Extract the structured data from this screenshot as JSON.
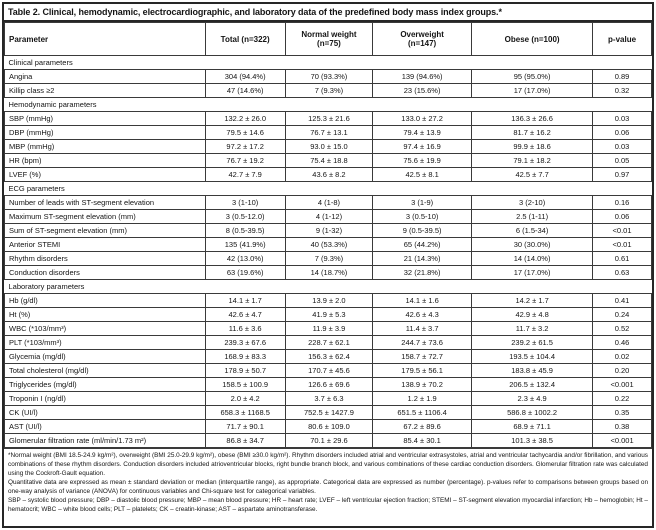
{
  "table": {
    "title": "Table 2. Clinical, hemodynamic, electrocardiographic, and laboratory data of the predefined body mass index groups.*",
    "columns": [
      "Parameter",
      "Total (n=322)",
      "Normal weight (n=75)",
      "Overweight (n=147)",
      "Obese (n=100)",
      "p-value"
    ],
    "sections": [
      {
        "label": "Clinical parameters",
        "rows": [
          {
            "parameter": "Angina",
            "values": [
              "304 (94.4%)",
              "70 (93.3%)",
              "139 (94.6%)",
              "95 (95.0%)"
            ],
            "p": "0.89"
          },
          {
            "parameter": "Killip class ≥2",
            "values": [
              "47 (14.6%)",
              "7 (9.3%)",
              "23 (15.6%)",
              "17 (17.0%)"
            ],
            "p": "0.32"
          }
        ]
      },
      {
        "label": "Hemodynamic parameters",
        "rows": [
          {
            "parameter": "SBP (mmHg)",
            "values": [
              "132.2 ± 26.0",
              "125.3 ± 21.6",
              "133.0 ± 27.2",
              "136.3 ± 26.6"
            ],
            "p": "0.03"
          },
          {
            "parameter": "DBP (mmHg)",
            "values": [
              "79.5 ± 14.6",
              "76.7 ± 13.1",
              "79.4 ± 13.9",
              "81.7 ± 16.2"
            ],
            "p": "0.06"
          },
          {
            "parameter": "MBP (mmHg)",
            "values": [
              "97.2 ± 17.2",
              "93.0 ± 15.0",
              "97.4 ± 16.9",
              "99.9 ± 18.6"
            ],
            "p": "0.03"
          },
          {
            "parameter": "HR (bpm)",
            "values": [
              "76.7 ± 19.2",
              "75.4 ± 18.8",
              "75.6 ± 19.9",
              "79.1 ± 18.2"
            ],
            "p": "0.05"
          },
          {
            "parameter": "LVEF (%)",
            "values": [
              "42.7 ± 7.9",
              "43.6 ± 8.2",
              "42.5 ± 8.1",
              "42.5 ± 7.7"
            ],
            "p": "0.97"
          }
        ]
      },
      {
        "label": "ECG parameters",
        "rows": [
          {
            "parameter": "Number of leads with ST-segment elevation",
            "values": [
              "3 (1-10)",
              "4 (1-8)",
              "3 (1-9)",
              "3 (2-10)"
            ],
            "p": "0.16"
          },
          {
            "parameter": "Maximum ST-segment elevation (mm)",
            "values": [
              "3 (0.5-12.0)",
              "4 (1-12)",
              "3 (0.5-10)",
              "2.5 (1-11)"
            ],
            "p": "0.06"
          },
          {
            "parameter": "Sum of ST-segment elevation (mm)",
            "values": [
              "8 (0.5-39.5)",
              "9 (1-32)",
              "9 (0.5-39.5)",
              "6 (1.5-34)"
            ],
            "p": "<0.01"
          },
          {
            "parameter": "Anterior STEMI",
            "values": [
              "135 (41.9%)",
              "40 (53.3%)",
              "65 (44.2%)",
              "30 (30.0%)"
            ],
            "p": "<0.01"
          },
          {
            "parameter": "Rhythm disorders",
            "values": [
              "42 (13.0%)",
              "7 (9.3%)",
              "21 (14.3%)",
              "14 (14.0%)"
            ],
            "p": "0.61"
          },
          {
            "parameter": "Conduction disorders",
            "values": [
              "63 (19.6%)",
              "14 (18.7%)",
              "32 (21.8%)",
              "17 (17.0%)"
            ],
            "p": "0.63"
          }
        ]
      },
      {
        "label": "Laboratory parameters",
        "rows": [
          {
            "parameter": "Hb (g/dl)",
            "values": [
              "14.1 ± 1.7",
              "13.9 ± 2.0",
              "14.1 ± 1.6",
              "14.2 ± 1.7"
            ],
            "p": "0.41"
          },
          {
            "parameter": "Ht (%)",
            "values": [
              "42.6 ± 4.7",
              "41.9 ± 5.3",
              "42.6 ± 4.3",
              "42.9 ± 4.8"
            ],
            "p": "0.24"
          },
          {
            "parameter": "WBC (*103/mm³)",
            "values": [
              "11.6 ± 3.6",
              "11.9 ± 3.9",
              "11.4 ± 3.7",
              "11.7 ± 3.2"
            ],
            "p": "0.52"
          },
          {
            "parameter": "PLT (*103/mm³)",
            "values": [
              "239.3 ± 67.6",
              "228.7 ± 62.1",
              "244.7 ± 73.6",
              "239.2 ± 61.5"
            ],
            "p": "0.46"
          },
          {
            "parameter": "Glycemia (mg/dl)",
            "values": [
              "168.9 ± 83.3",
              "156.3 ± 62.4",
              "158.7 ± 72.7",
              "193.5 ± 104.4"
            ],
            "p": "0.02"
          },
          {
            "parameter": "Total cholesterol (mg/dl)",
            "values": [
              "178.9 ± 50.7",
              "170.7 ± 45.6",
              "179.5 ± 56.1",
              "183.8 ± 45.9"
            ],
            "p": "0.20"
          },
          {
            "parameter": "Triglycerides (mg/dl)",
            "values": [
              "158.5 ± 100.9",
              "126.6 ± 69.6",
              "138.9 ± 70.2",
              "206.5 ± 132.4"
            ],
            "p": "<0.001"
          },
          {
            "parameter": "Troponin I (ng/dl)",
            "values": [
              "2.0 ± 4.2",
              "3.7 ± 6.3",
              "1.2 ± 1.9",
              "2.3 ± 4.9"
            ],
            "p": "0.22"
          },
          {
            "parameter": "CK (UI/l)",
            "values": [
              "658.3 ± 1168.5",
              "752.5 ± 1427.9",
              "651.5 ± 1106.4",
              "586.8 ± 1002.2"
            ],
            "p": "0.35"
          },
          {
            "parameter": "AST (UI/l)",
            "values": [
              "71.7 ± 90.1",
              "80.6 ± 109.0",
              "67.2 ± 89.6",
              "68.9 ± 71.1"
            ],
            "p": "0.38"
          },
          {
            "parameter": "Glomerular filtration rate (ml/min/1.73 m²)",
            "values": [
              "86.8 ± 34.7",
              "70.1 ± 29.6",
              "85.4 ± 30.1",
              "101.3 ± 38.5"
            ],
            "p": "<0.001"
          }
        ]
      }
    ]
  },
  "footnotes": [
    "*Normal weight (BMI 18.5-24.9 kg/m²), overweight (BMI 25.0-29.9 kg/m²), obese (BMI ≥30.0 kg/m²). Rhythm disorders included atrial and ventricular extrasystoles, atrial and ventricular tachycardia and/or fibrillation, and various combinations of these rhythm disorders. Conduction disorders included atrioventricular blocks, right bundle branch block, and various combinations of these cardiac conduction disorders. Glomerular filtration rate was calculated using the Cockroft-Gault equation.",
    "Quantitative data are expressed as mean ± standard deviation or median (interquartile range), as appropriate. Categorical data are expressed as number (percentage). p-values refer to comparisons between groups based on one-way analysis of variance (ANOVA) for continuous variables and Chi-square test for categorical variables.",
    "SBP – systolic blood pressure; DBP – diastolic blood pressure; MBP – mean blood pressure; HR – heart rate; LVEF – left ventricular ejection fraction; STEMI – ST-segment elevation myocardial infarction; Hb – hemoglobin; Ht – hematocrit; WBC – white blood cells; PLT – platelets; CK – creatin-kinase; AST – aspartate aminotransferase."
  ]
}
